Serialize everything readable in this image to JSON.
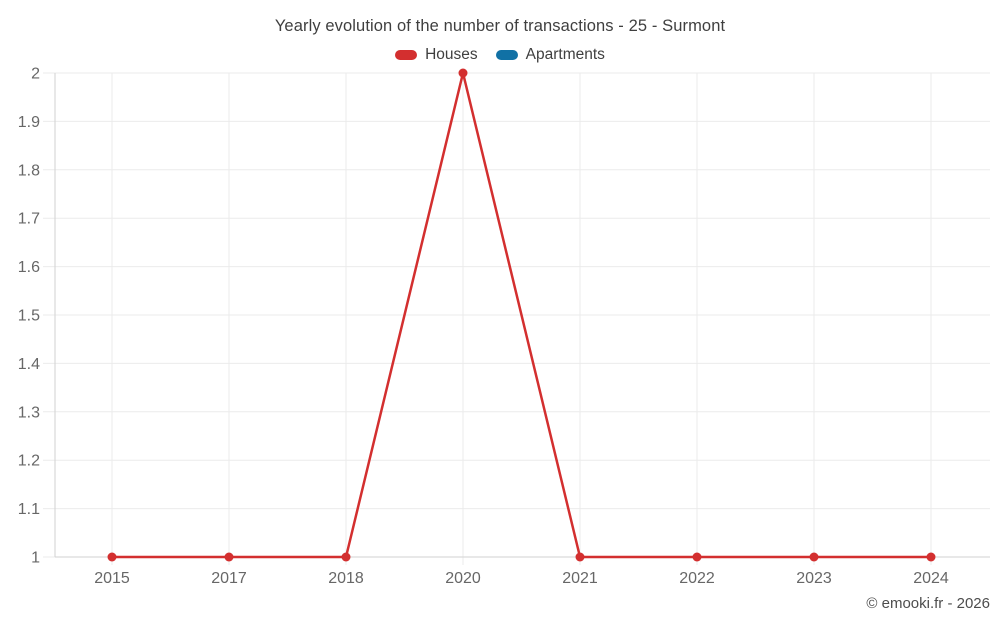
{
  "footer": {
    "copyright": "© emooki.fr - 2026"
  },
  "colors": {
    "houses": "#d32f2f",
    "apartments": "#1171a5",
    "grid": "#ebebeb",
    "axis": "#d2d2d2",
    "tick_text": "#676767",
    "title_text": "#3f3f3f"
  },
  "chart_data": {
    "type": "line",
    "title": "Yearly evolution of the number of transactions - 25 - Surmont",
    "categories": [
      "2015",
      "2017",
      "2018",
      "2020",
      "2021",
      "2022",
      "2023",
      "2024"
    ],
    "series": [
      {
        "name": "Houses",
        "color": "#d32f2f",
        "values": [
          1,
          1,
          1,
          2,
          1,
          1,
          1,
          1
        ]
      },
      {
        "name": "Apartments",
        "color": "#1171a5",
        "values": []
      }
    ],
    "xlabel": "",
    "ylabel": "",
    "ylim": [
      1,
      2
    ],
    "ytick_values": [
      2,
      1.9,
      1.8,
      1.7,
      1.6,
      1.5,
      1.4,
      1.3,
      1.2,
      1.1,
      1
    ],
    "ytick_labels": [
      "2",
      "1.9",
      "1.8",
      "1.7",
      "1.6",
      "1.5",
      "1.4",
      "1.3",
      "1.2",
      "1.1",
      "1"
    ],
    "grid": true,
    "legend_position": "top"
  }
}
